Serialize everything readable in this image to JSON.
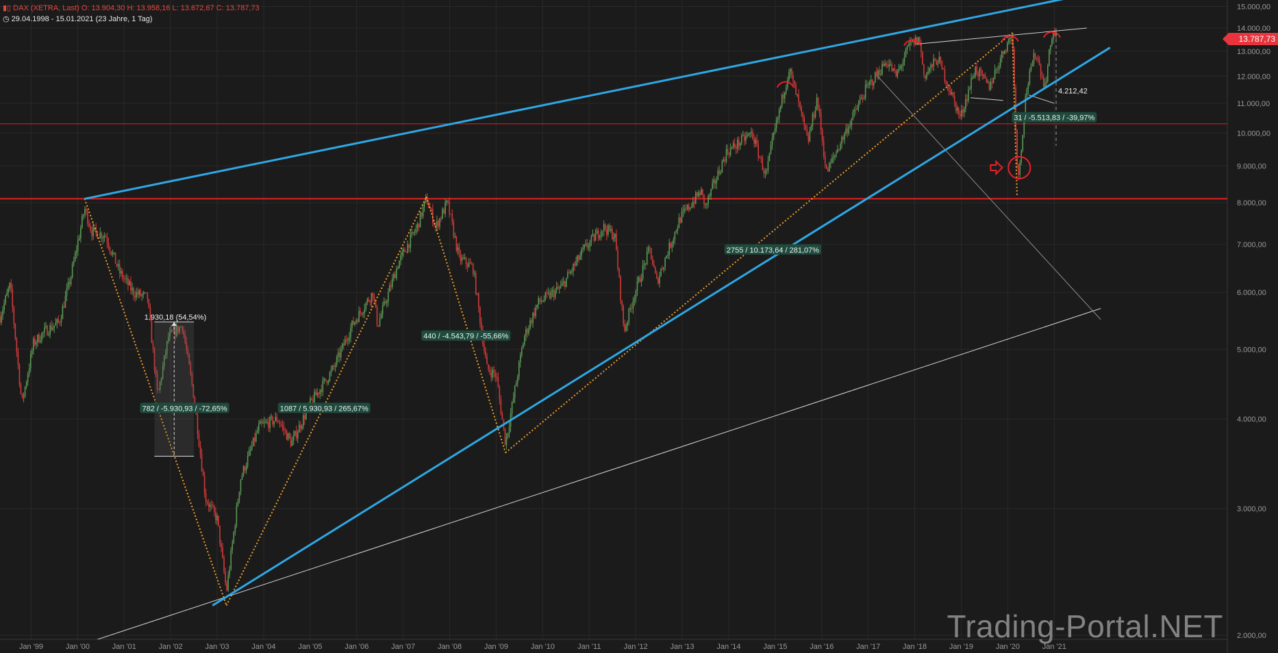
{
  "header": {
    "symbol": "DAX (XETRA, Last)",
    "ohlc": "O: 13.904,30  H: 13.958,16  L: 13.672,67  C: 13.787,73",
    "range": "29.04.1998 - 15.01.2021",
    "period": "(23 Jahre, 1 Tag)"
  },
  "watermark": "Trading-Portal.NET",
  "last_price_label": "13.787,73",
  "colors": {
    "background": "#1c1b1b",
    "trend_channel": "#2ea8e6",
    "horizontal_level": "#e02222",
    "dotted_swing": "#f0a22a",
    "white_line": "#d8d8d8",
    "annotation_bg": "#1f4a3d",
    "up_candle": "#5a9a55",
    "down_candle": "#d23a3a",
    "marker": "#e8202a"
  },
  "chart_data": {
    "type": "line",
    "title": "DAX (XETRA, Last)",
    "scale": "log",
    "x_range": [
      1998.33,
      2021.04
    ],
    "ylim": [
      1950,
      15600
    ],
    "x_tick_labels": [
      "Jan '99",
      "Jan '00",
      "Jan '01",
      "Jan '02",
      "Jan '03",
      "Jan '04",
      "Jan '05",
      "Jan '06",
      "Jan '07",
      "Jan '08",
      "Jan '09",
      "Jan '10",
      "Jan '11",
      "Jan '12",
      "Jan '13",
      "Jan '14",
      "Jan '15",
      "Jan '16",
      "Jan '17",
      "Jan '18",
      "Jan '19",
      "Jan '20",
      "Jan '21"
    ],
    "y_tick_labels": [
      "15.000,00",
      "14.000,00",
      "13.000,00",
      "12.000,00",
      "11.000,00",
      "10.000,00",
      "9.000,00",
      "8.000,00",
      "7.000,00",
      "6.000,00",
      "5.000,00",
      "4.000,00",
      "3.000,00",
      "2.000,00"
    ],
    "grid": true,
    "series": [
      {
        "name": "DAX",
        "points": [
          [
            1998.33,
            5550
          ],
          [
            1998.55,
            6150
          ],
          [
            1998.8,
            4200
          ],
          [
            1999.05,
            5100
          ],
          [
            1999.3,
            5300
          ],
          [
            1999.6,
            5450
          ],
          [
            1999.85,
            6300
          ],
          [
            2000.15,
            7850
          ],
          [
            2000.3,
            7300
          ],
          [
            2000.6,
            7200
          ],
          [
            2000.9,
            6400
          ],
          [
            2001.2,
            6000
          ],
          [
            2001.5,
            5900
          ],
          [
            2001.72,
            4300
          ],
          [
            2001.95,
            5200
          ],
          [
            2002.25,
            5400
          ],
          [
            2002.5,
            4300
          ],
          [
            2002.75,
            3100
          ],
          [
            2003.0,
            2900
          ],
          [
            2003.2,
            2300
          ],
          [
            2003.5,
            3300
          ],
          [
            2003.9,
            3900
          ],
          [
            2004.3,
            4000
          ],
          [
            2004.6,
            3700
          ],
          [
            2005.0,
            4200
          ],
          [
            2005.5,
            4700
          ],
          [
            2005.9,
            5400
          ],
          [
            2006.35,
            6000
          ],
          [
            2006.45,
            5400
          ],
          [
            2006.9,
            6600
          ],
          [
            2007.3,
            7400
          ],
          [
            2007.5,
            8100
          ],
          [
            2007.7,
            7400
          ],
          [
            2007.95,
            8000
          ],
          [
            2008.2,
            6700
          ],
          [
            2008.5,
            6500
          ],
          [
            2008.8,
            4700
          ],
          [
            2009.0,
            4600
          ],
          [
            2009.2,
            3700
          ],
          [
            2009.6,
            5200
          ],
          [
            2009.9,
            5800
          ],
          [
            2010.4,
            6100
          ],
          [
            2010.9,
            6900
          ],
          [
            2011.3,
            7400
          ],
          [
            2011.55,
            7200
          ],
          [
            2011.75,
            5300
          ],
          [
            2011.95,
            5900
          ],
          [
            2012.3,
            6900
          ],
          [
            2012.45,
            6200
          ],
          [
            2012.95,
            7600
          ],
          [
            2013.4,
            8300
          ],
          [
            2013.5,
            7900
          ],
          [
            2013.95,
            9400
          ],
          [
            2014.5,
            10000
          ],
          [
            2014.8,
            8700
          ],
          [
            2014.95,
            9800
          ],
          [
            2015.3,
            12300
          ],
          [
            2015.5,
            11000
          ],
          [
            2015.7,
            9700
          ],
          [
            2015.9,
            11200
          ],
          [
            2016.1,
            8800
          ],
          [
            2016.5,
            10000
          ],
          [
            2016.95,
            11500
          ],
          [
            2017.4,
            12600
          ],
          [
            2017.6,
            12000
          ],
          [
            2017.9,
            13300
          ],
          [
            2018.1,
            13500
          ],
          [
            2018.2,
            12000
          ],
          [
            2018.5,
            12700
          ],
          [
            2018.75,
            11500
          ],
          [
            2018.98,
            10500
          ],
          [
            2019.3,
            12300
          ],
          [
            2019.6,
            11600
          ],
          [
            2019.95,
            13200
          ],
          [
            2020.1,
            13700
          ],
          [
            2020.22,
            8500
          ],
          [
            2020.4,
            11500
          ],
          [
            2020.6,
            13000
          ],
          [
            2020.8,
            11600
          ],
          [
            2020.95,
            13700
          ],
          [
            2021.04,
            13787
          ]
        ]
      }
    ],
    "overlays": {
      "upper_channel": [
        [
          2000.15,
          8100
        ],
        [
          2021.8,
          15650
        ]
      ],
      "lower_channel": [
        [
          2002.9,
          2200
        ],
        [
          2022.2,
          13150
        ]
      ],
      "long_support": [
        [
          1998.33,
          1780
        ],
        [
          2022.0,
          5700
        ]
      ],
      "grey_trend": [
        [
          2017.2,
          12000
        ],
        [
          2022.0,
          5500
        ]
      ],
      "horizontal_levels": [
        8100,
        10300
      ],
      "dotted_swings": [
        [
          [
            2000.15,
            8100
          ],
          [
            2003.2,
            2200
          ]
        ],
        [
          [
            2003.2,
            2200
          ],
          [
            2007.5,
            8150
          ]
        ],
        [
          [
            2007.5,
            8150
          ],
          [
            2009.2,
            3590
          ]
        ],
        [
          [
            2009.2,
            3590
          ],
          [
            2020.1,
            13790
          ]
        ],
        [
          [
            2020.1,
            13790
          ],
          [
            2020.2,
            8200
          ]
        ]
      ],
      "wedge_lines": [
        [
          [
            2018.05,
            13300
          ],
          [
            2021.7,
            14000
          ]
        ],
        [
          [
            2019.2,
            11200
          ],
          [
            2019.9,
            11100
          ]
        ],
        [
          [
            2020.45,
            11300
          ],
          [
            2021.0,
            11000
          ]
        ]
      ],
      "rect_2002": {
        "from": 2001.65,
        "to": 2002.5,
        "low": 3550,
        "high": 5460
      },
      "resistance_arcs": [
        2015.22,
        2017.95,
        2020.05,
        2020.95
      ],
      "crash_circle": [
        2020.25,
        8950
      ],
      "marker_arrow": [
        2019.75,
        8950
      ]
    },
    "annotations": [
      {
        "text": "1.930,18 (54,54%)",
        "kind": "plain",
        "x": 2002.1,
        "y": 5550
      },
      {
        "text": "782 / -5.930,93 / -72,65%",
        "kind": "badge",
        "x": 2002.3,
        "y": 4140
      },
      {
        "text": "1087 / 5.930,93 / 265,67%",
        "kind": "badge",
        "x": 2005.3,
        "y": 4140
      },
      {
        "text": "440 / -4.543,79 / -55,66%",
        "kind": "badge",
        "x": 2008.35,
        "y": 5220
      },
      {
        "text": "2755 / 10.173,64 / 281,07%",
        "kind": "badge",
        "x": 2014.95,
        "y": 6880
      },
      {
        "text": "31 / -5.513,83 / -39,97%",
        "kind": "badge",
        "x": 2021.0,
        "y": 10510
      },
      {
        "text": "4.212,42",
        "kind": "plain",
        "x": 2021.4,
        "y": 11450
      }
    ]
  }
}
